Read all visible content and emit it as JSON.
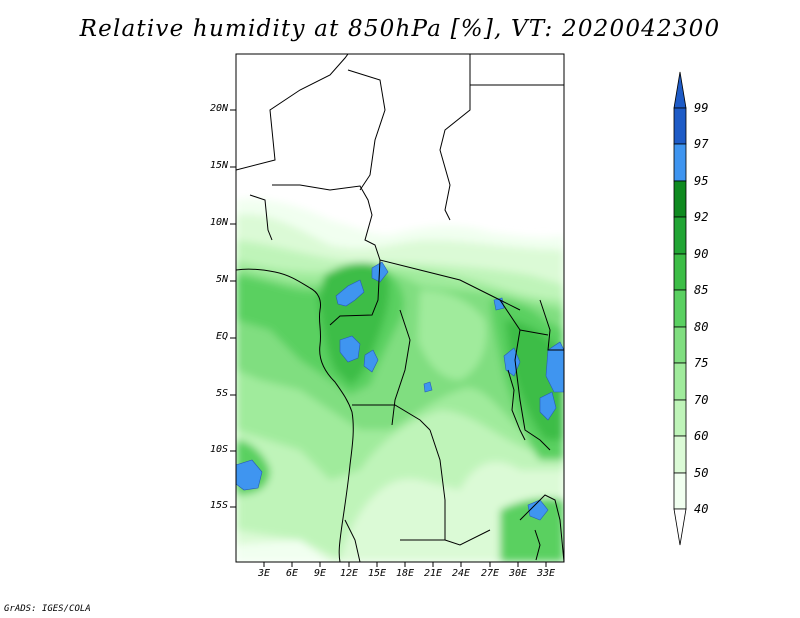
{
  "title": "Relative humidity at 850hPa [%], VT: 2020042300",
  "footer": "GrADS: IGES/COLA",
  "map": {
    "lat_labels": [
      "20N",
      "15N",
      "10N",
      "5N",
      "EQ",
      "5S",
      "10S",
      "15S"
    ],
    "lon_labels": [
      "3E",
      "6E",
      "9E",
      "12E",
      "15E",
      "18E",
      "21E",
      "24E",
      "27E",
      "30E",
      "33E"
    ]
  },
  "colorbar": {
    "levels": [
      "99",
      "97",
      "95",
      "92",
      "90",
      "85",
      "80",
      "75",
      "70",
      "60",
      "50",
      "40"
    ],
    "colors": [
      "#1e5bc6",
      "#1f6fe0",
      "#3f95f0",
      "#0f8a20",
      "#21a534",
      "#3cbd46",
      "#5ad061",
      "#80de80",
      "#a0eb9c",
      "#bff4b9",
      "#dbfad6",
      "#f1fff0"
    ]
  }
}
